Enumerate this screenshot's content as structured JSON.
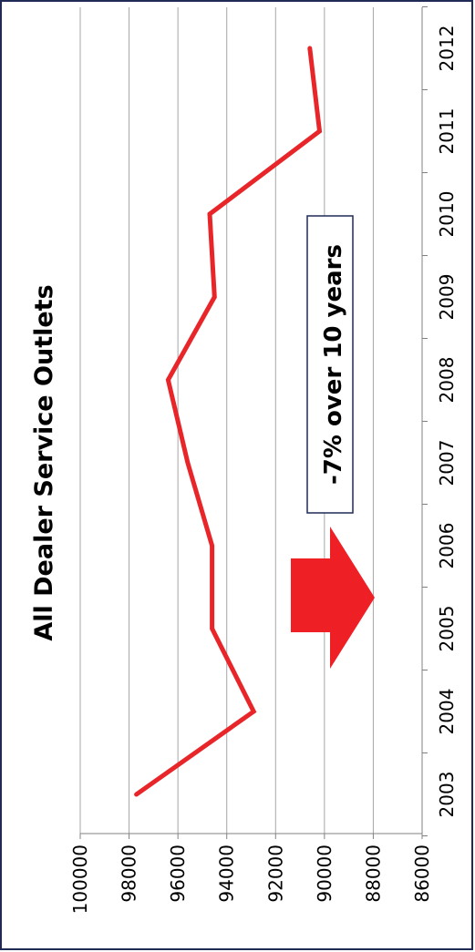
{
  "chart_data": {
    "type": "line",
    "title": "All Dealer Service Outlets",
    "annotation": "-7% over 10 years",
    "x": [
      "2003",
      "2004",
      "2005",
      "2006",
      "2007",
      "2008",
      "2009",
      "2010",
      "2011",
      "2012"
    ],
    "series": [
      {
        "values": [
          97700,
          92900,
          94600,
          94600,
          95600,
          96400,
          94500,
          94700,
          90200,
          90600
        ]
      }
    ],
    "y_ticks": [
      "100000",
      "98000",
      "96000",
      "94000",
      "92000",
      "90000",
      "88000",
      "86000"
    ],
    "ylim": [
      86000,
      100000
    ],
    "orientation": "rotated-90-clockwise",
    "grid": true,
    "line_color": "#e8262a",
    "arrow_color": "#ee2026",
    "frame_color": "#1f2a57"
  }
}
